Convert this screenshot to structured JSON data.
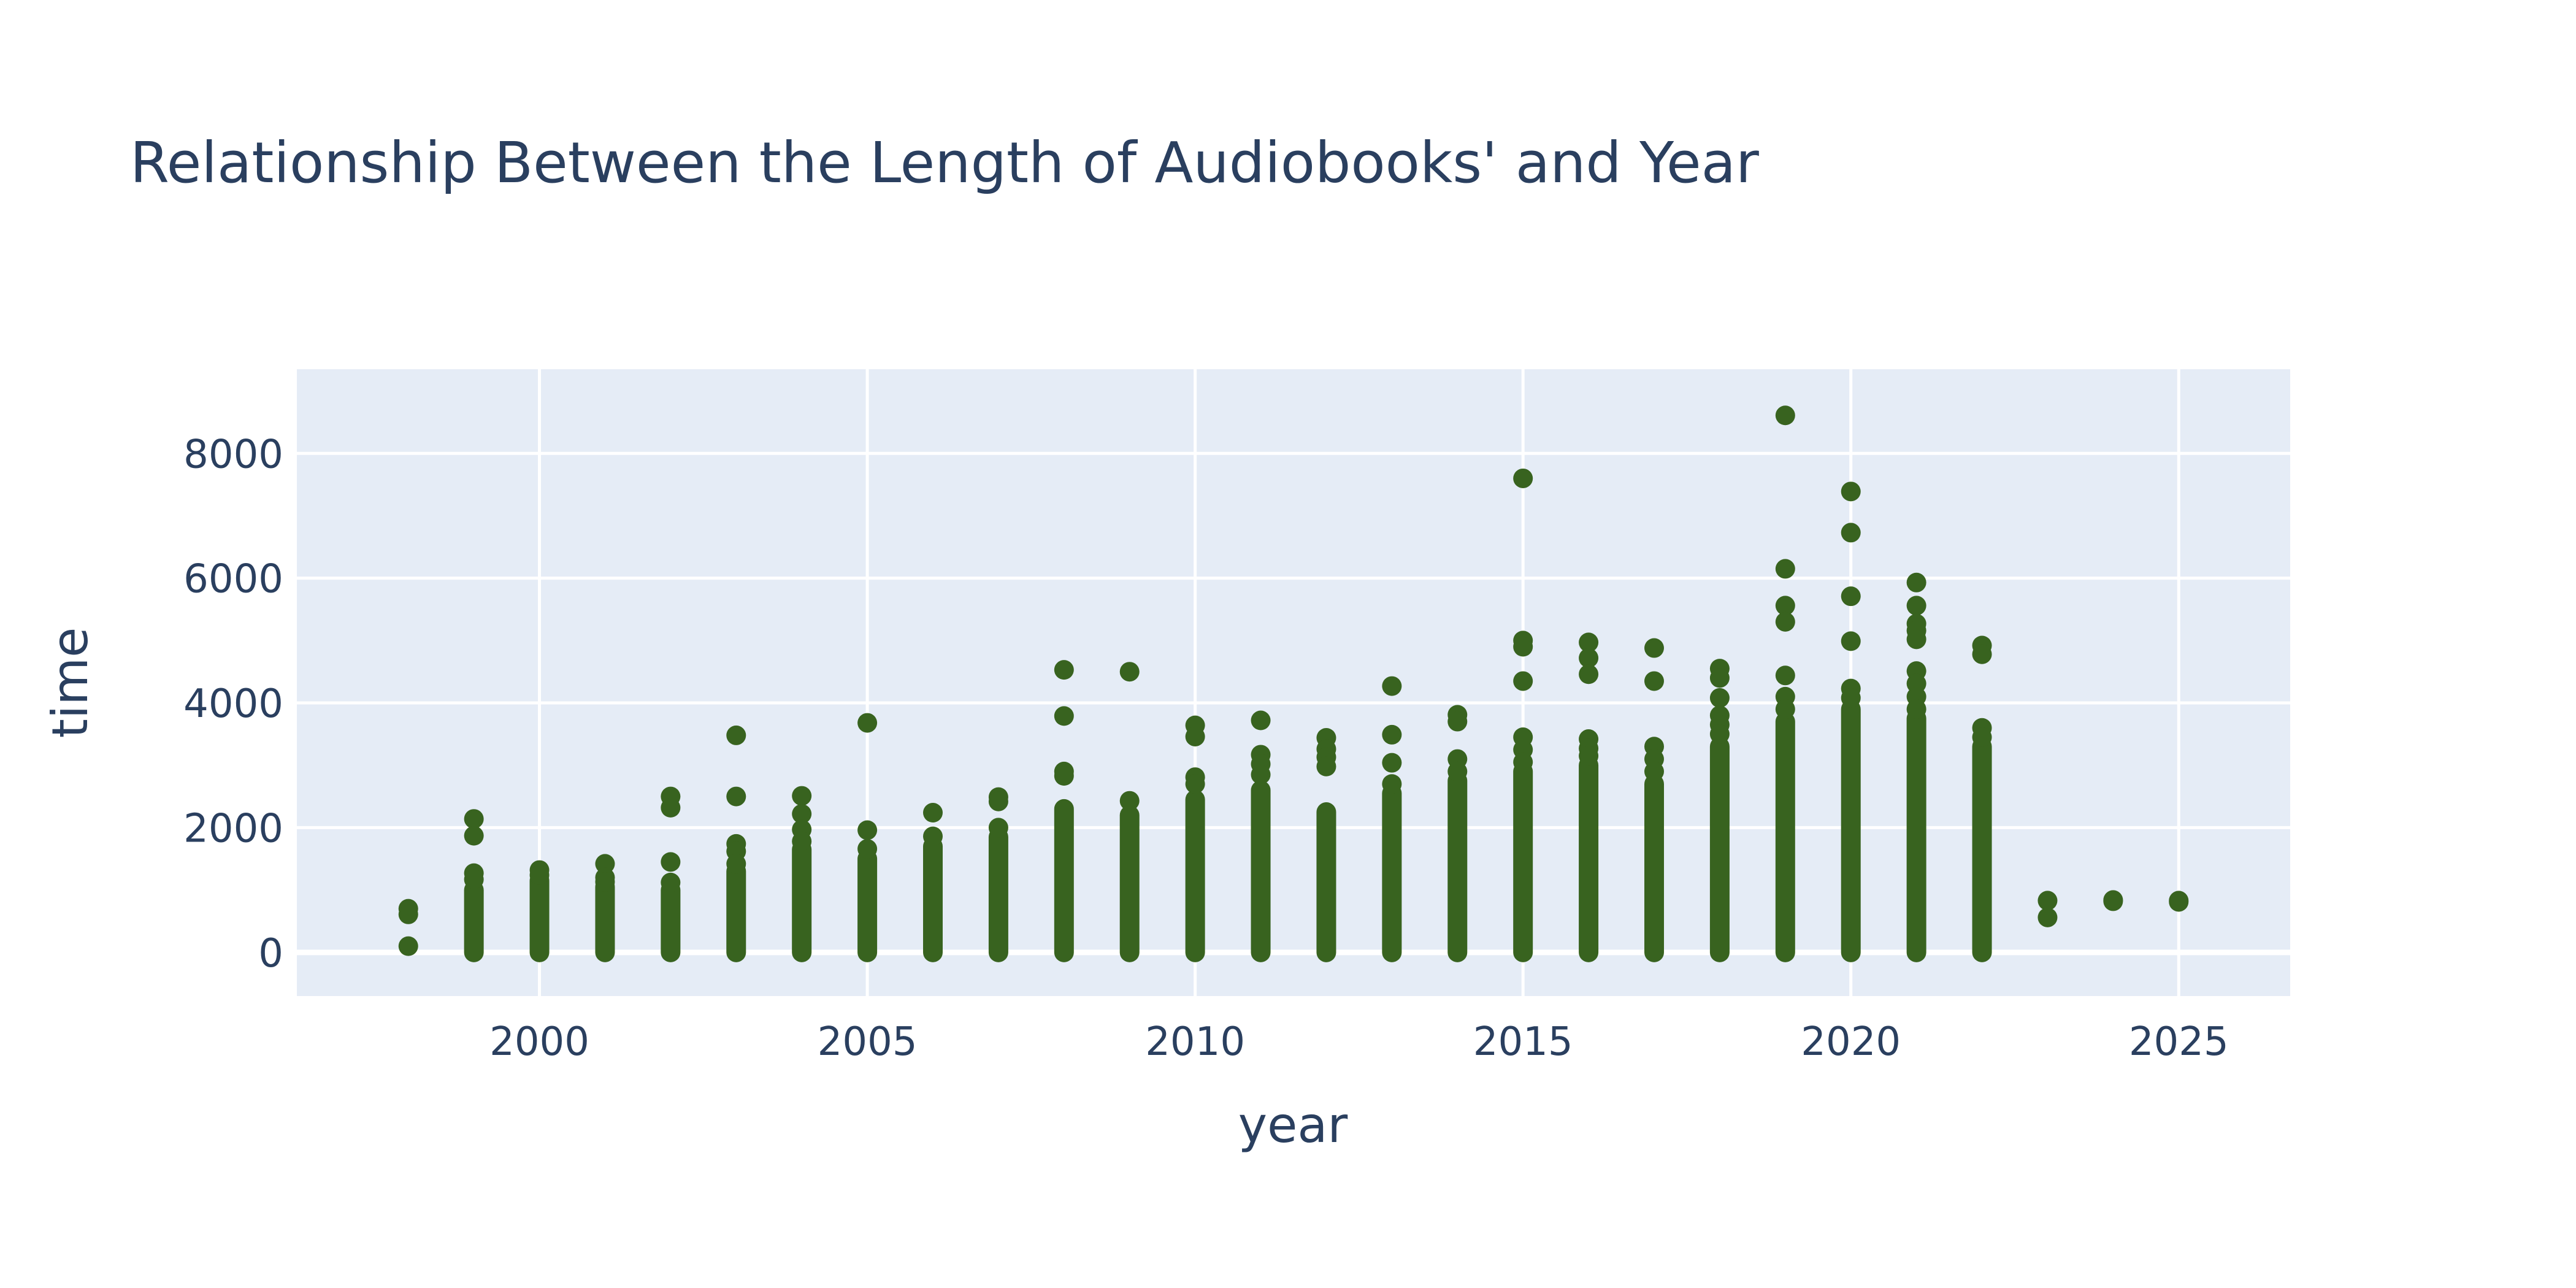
{
  "chart_data": {
    "type": "scatter",
    "title": "Relationship Between the Length of Audiobooks' and Year",
    "xlabel": "year",
    "ylabel": "time",
    "xlim": [
      1996.3,
      2026.7
    ],
    "ylim": [
      -700,
      9350
    ],
    "xticks": [
      2000,
      2005,
      2010,
      2015,
      2020,
      2025
    ],
    "yticks": [
      0,
      2000,
      4000,
      6000,
      8000
    ],
    "grid": true,
    "legend": "none",
    "colors": {
      "marker": "#38631f",
      "plot_bg": "#e5ecf6",
      "text": "#2a3f5f"
    },
    "series": [
      {
        "columns": [
          {
            "x": 1998,
            "band": [],
            "points": [
              700,
              610,
              100
            ]
          },
          {
            "x": 1999,
            "band": [
              0,
              1000
            ],
            "points": [
              2140,
              1870,
              1270,
              1170
            ]
          },
          {
            "x": 2000,
            "band": [
              0,
              1150
            ],
            "points": [
              1320,
              1240
            ]
          },
          {
            "x": 2001,
            "band": [
              0,
              1050
            ],
            "points": [
              1420,
              1200,
              1130
            ]
          },
          {
            "x": 2002,
            "band": [
              0,
              1000
            ],
            "points": [
              2500,
              2320,
              1450,
              1120
            ]
          },
          {
            "x": 2003,
            "band": [
              0,
              1300
            ],
            "points": [
              3480,
              2500,
              1740,
              1620,
              1420
            ]
          },
          {
            "x": 2004,
            "band": [
              0,
              1650
            ],
            "points": [
              2510,
              2220,
              1970,
              1780
            ]
          },
          {
            "x": 2005,
            "band": [
              0,
              1500
            ],
            "points": [
              3680,
              1960,
              1660
            ]
          },
          {
            "x": 2006,
            "band": [
              0,
              1700
            ],
            "points": [
              2240,
              1860
            ]
          },
          {
            "x": 2007,
            "band": [
              0,
              1850
            ],
            "points": [
              2490,
              2420,
              2000
            ]
          },
          {
            "x": 2008,
            "band": [
              0,
              2300
            ],
            "points": [
              4530,
              3790,
              2900,
              2830
            ]
          },
          {
            "x": 2009,
            "band": [
              0,
              2200
            ],
            "points": [
              4500,
              2430
            ]
          },
          {
            "x": 2010,
            "band": [
              0,
              2450
            ],
            "points": [
              3640,
              3460,
              2810,
              2700
            ]
          },
          {
            "x": 2011,
            "band": [
              0,
              2600
            ],
            "points": [
              3720,
              3170,
              3020,
              2850
            ]
          },
          {
            "x": 2012,
            "band": [
              0,
              2250
            ],
            "points": [
              3440,
              3260,
              3130,
              2980
            ]
          },
          {
            "x": 2013,
            "band": [
              0,
              2550
            ],
            "points": [
              4270,
              3490,
              3040,
              2700
            ]
          },
          {
            "x": 2014,
            "band": [
              0,
              2750
            ],
            "points": [
              3810,
              3700,
              3100,
              2900
            ]
          },
          {
            "x": 2015,
            "band": [
              0,
              2900
            ],
            "points": [
              7600,
              5000,
              4900,
              4350,
              3450,
              3250,
              3050
            ]
          },
          {
            "x": 2016,
            "band": [
              0,
              3000
            ],
            "points": [
              4970,
              4720,
              4460,
              3420,
              3270,
              3150
            ]
          },
          {
            "x": 2017,
            "band": [
              0,
              2700
            ],
            "points": [
              4880,
              4350,
              3300,
              3100,
              2900
            ]
          },
          {
            "x": 2018,
            "band": [
              0,
              3300
            ],
            "points": [
              4550,
              4400,
              4080,
              3800,
              3650,
              3500
            ]
          },
          {
            "x": 2019,
            "band": [
              0,
              3700
            ],
            "points": [
              8610,
              6150,
              5560,
              5300,
              4440,
              4100,
              3900
            ]
          },
          {
            "x": 2020,
            "band": [
              0,
              3900
            ],
            "points": [
              7390,
              6730,
              5710,
              4990,
              4230,
              4080
            ]
          },
          {
            "x": 2021,
            "band": [
              0,
              3750
            ],
            "points": [
              5930,
              5560,
              5270,
              5160,
              5020,
              4510,
              4310,
              4100,
              3900
            ]
          },
          {
            "x": 2022,
            "band": [
              0,
              3300
            ],
            "points": [
              4920,
              4780,
              3600,
              3450
            ]
          },
          {
            "x": 2023,
            "band": [],
            "points": [
              830,
              560
            ]
          },
          {
            "x": 2024,
            "band": [],
            "points": [
              840,
              820
            ]
          },
          {
            "x": 2025,
            "band": [],
            "points": [
              830,
              810
            ]
          }
        ]
      }
    ]
  }
}
